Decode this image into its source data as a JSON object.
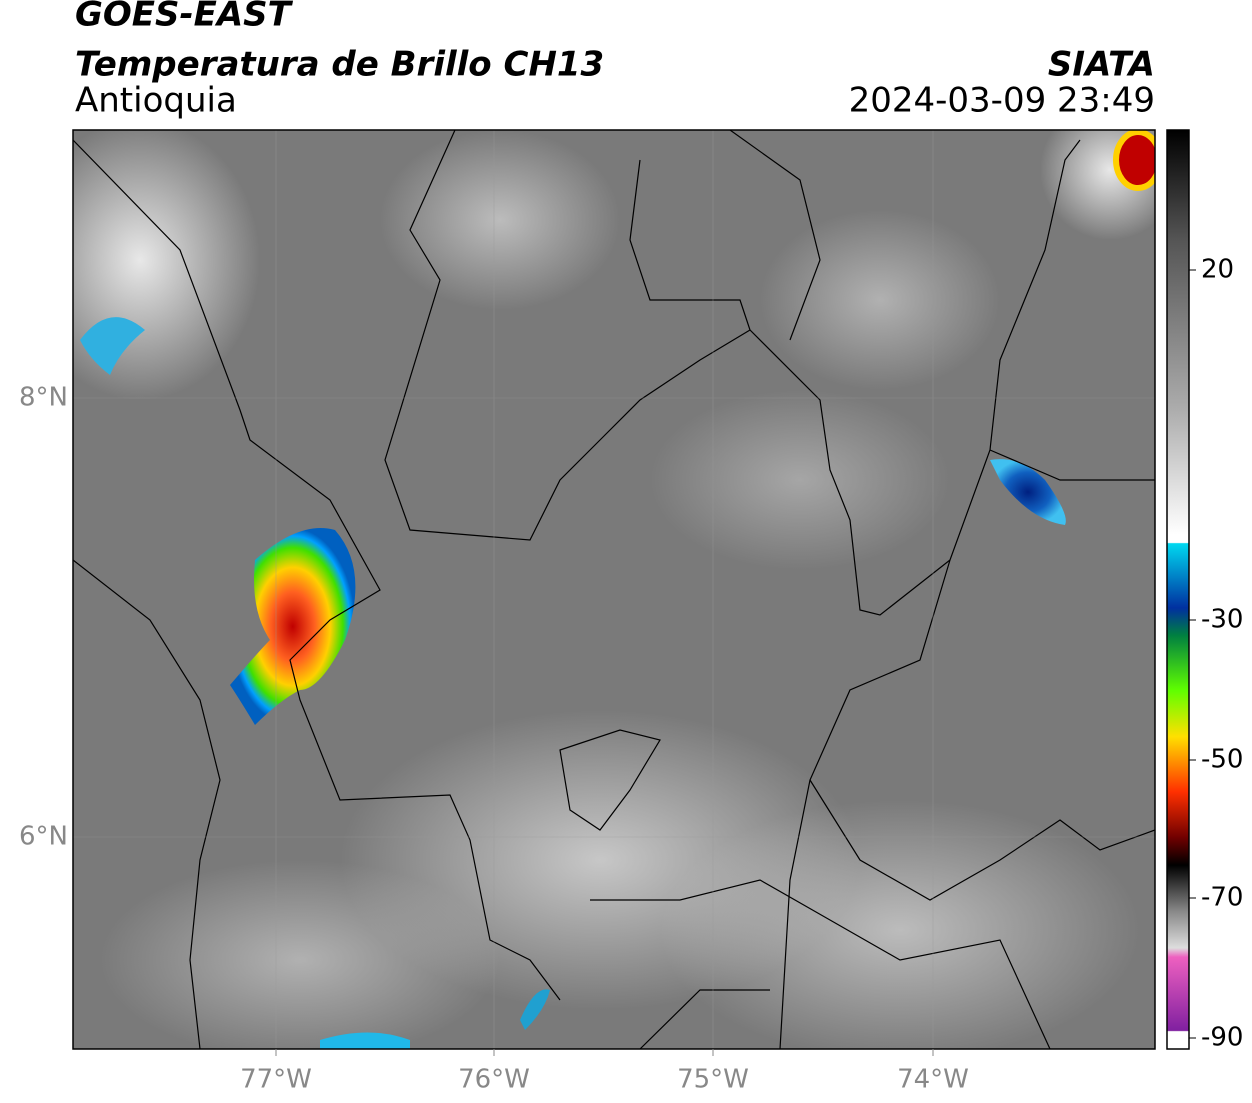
{
  "header": {
    "title": "GOES-EAST",
    "subtitle": "Temperatura de Brillo CH13",
    "region": "Antioquia",
    "source": "SIATA",
    "datetime": "2024-03-09 23:49"
  },
  "map": {
    "lat_labels": [
      "8°N",
      "6°N"
    ],
    "lon_labels": [
      "77°W",
      "76°W",
      "75°W",
      "74°W"
    ]
  },
  "colorbar": {
    "tick_labels": [
      "20",
      "-30",
      "-50",
      "-70",
      "-90"
    ]
  }
}
